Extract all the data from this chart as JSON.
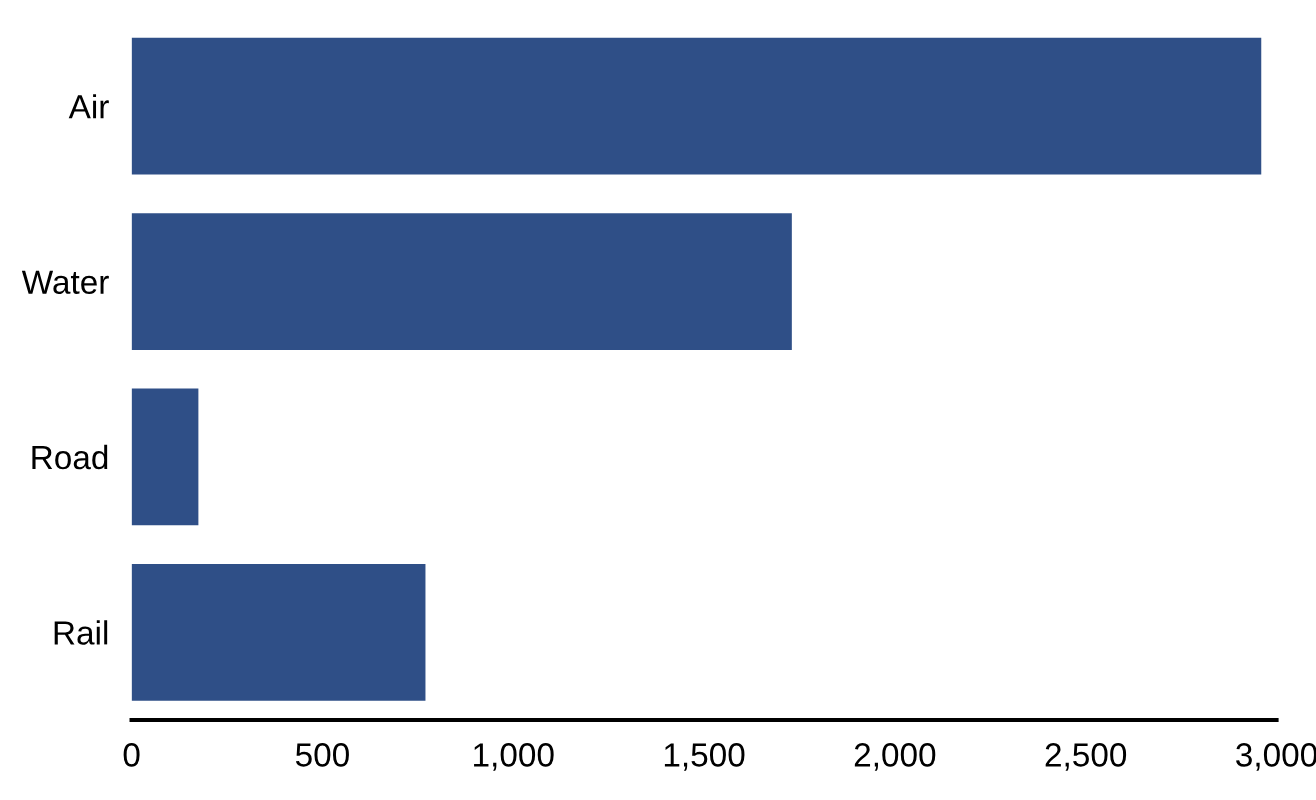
{
  "chart_data": {
    "type": "bar",
    "orientation": "horizontal",
    "categories": [
      "Air",
      "Water",
      "Road",
      "Rail"
    ],
    "values": [
      2960,
      1730,
      175,
      770
    ],
    "color": "#2f4f87",
    "xlim": [
      0,
      3000
    ],
    "xticks": [
      0,
      {
        "value": 500,
        "label": "500"
      },
      {
        "value": 1000,
        "label": "1,000"
      },
      {
        "value": 1500,
        "label": "1,500"
      },
      {
        "value": 2000,
        "label": "2,000"
      },
      {
        "value": 2500,
        "label": "2,500"
      },
      {
        "value": 3000,
        "label": "3,000"
      }
    ],
    "grid": false
  }
}
